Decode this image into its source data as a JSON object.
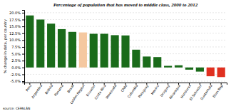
{
  "chart_data": {
    "type": "bar",
    "title": "Percentage of population that has moved to middle class, 2000 to 2012",
    "ylabel": "% change in data, per country",
    "source": "source: CEPALÁN",
    "categories": [
      "Peru",
      "Argentina",
      "Bolivia",
      "Panama",
      "Brazil",
      "LatAm Region",
      "Ecuador",
      "Costa Rica",
      "Venezuela",
      "Chile",
      "Colombia",
      "Paraguay",
      "Mexico",
      "Uruguay",
      "Nicaragua",
      "Honduras",
      "El Salvador",
      "Guatemala",
      "Dom Rep"
    ],
    "values": [
      19.0,
      17.5,
      16.0,
      14.0,
      13.0,
      12.8,
      12.3,
      12.3,
      11.8,
      11.7,
      6.5,
      4.0,
      3.8,
      0.6,
      0.8,
      -0.8,
      -1.5,
      -3.2,
      -3.5
    ],
    "colors": [
      "#1a6b1a",
      "#1a6b1a",
      "#1a6b1a",
      "#1a6b1a",
      "#1a6b1a",
      "#f5c8a0",
      "#1a6b1a",
      "#1a6b1a",
      "#1a6b1a",
      "#1a6b1a",
      "#1a6b1a",
      "#1a6b1a",
      "#1a6b1a",
      "#1a6b1a",
      "#1a6b1a",
      "#1a6b1a",
      "#1a6b1a",
      "#e03020",
      "#e03020"
    ],
    "ylim": [
      -5.5,
      21.0
    ],
    "yticks": [
      {
        "value": -5.0,
        "label": "-5.0%"
      },
      {
        "value": -2.5,
        "label": "-2.5%"
      },
      {
        "value": 0.0,
        "label": "0.0%"
      },
      {
        "value": 2.5,
        "label": "2.5%"
      },
      {
        "value": 5.0,
        "label": "5.0%"
      },
      {
        "value": 7.5,
        "label": "7.5%"
      },
      {
        "value": 10.0,
        "label": "10.0%"
      },
      {
        "value": 12.5,
        "label": "12.5%"
      },
      {
        "value": 15.0,
        "label": "15.0%"
      },
      {
        "value": 17.5,
        "label": "17.5%"
      },
      {
        "value": 20.0,
        "label": "20.0%"
      }
    ],
    "grid": true
  }
}
